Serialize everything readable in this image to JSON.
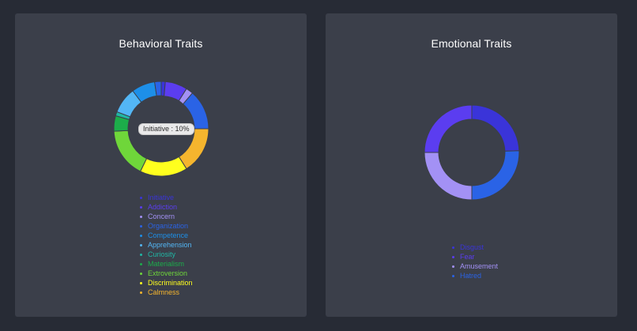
{
  "cards": [
    {
      "title": "Behavioral Traits",
      "tooltip": "Initiative : 10%",
      "legend": [
        {
          "label": "Initiative",
          "color": "#3a34d9"
        },
        {
          "label": "Addiction",
          "color": "#5b3df0"
        },
        {
          "label": "Concern",
          "color": "#a391f5"
        },
        {
          "label": "Organization",
          "color": "#2a63e6"
        },
        {
          "label": "Competence",
          "color": "#1d8fe8"
        },
        {
          "label": "Apprehension",
          "color": "#53b6f5"
        },
        {
          "label": "Curiosity",
          "color": "#20b7a4"
        },
        {
          "label": "Materialism",
          "color": "#1cad4a"
        },
        {
          "label": "Extroversion",
          "color": "#6fd63a"
        },
        {
          "label": "Discrimination",
          "color": "#ffff1e"
        },
        {
          "label": "Calmness",
          "color": "#f5b52e"
        }
      ]
    },
    {
      "title": "Emotional Traits",
      "tooltip": "",
      "legend": [
        {
          "label": "Disgust",
          "color": "#3a34d9"
        },
        {
          "label": "Fear",
          "color": "#5b3df0"
        },
        {
          "label": "Amusement",
          "color": "#a391f5"
        },
        {
          "label": "Hatred",
          "color": "#2a63e6"
        }
      ]
    }
  ]
}
